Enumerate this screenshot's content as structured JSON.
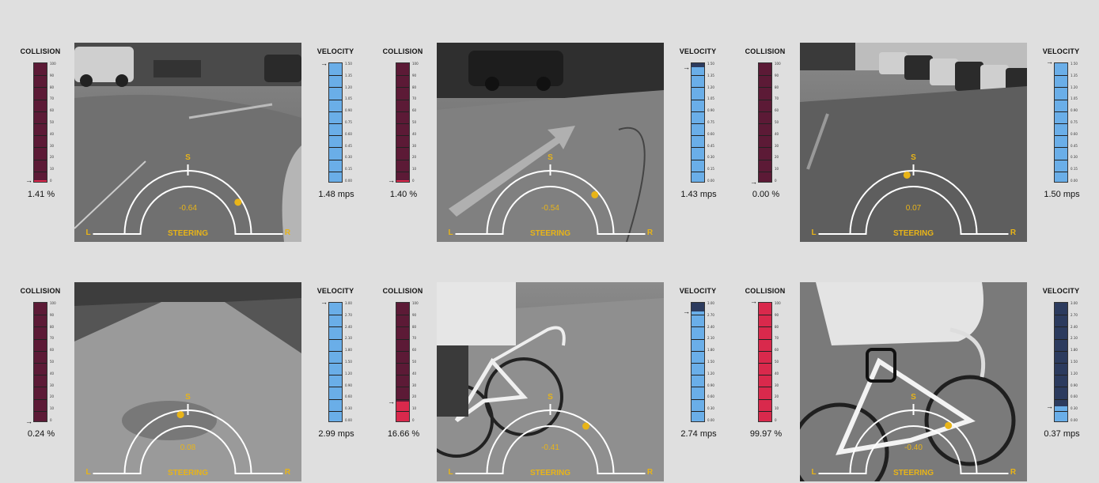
{
  "labels": {
    "collision": "COLLISION",
    "velocity": "VELOCITY",
    "steering": "STEERING",
    "s": "S",
    "l": "L",
    "r": "R"
  },
  "collision_scale": [
    "100",
    "90",
    "80",
    "70",
    "60",
    "50",
    "40",
    "30",
    "20",
    "10",
    "0"
  ],
  "velocity_scale_low": [
    "1.50",
    "1.35",
    "1.20",
    "1.05",
    "0.90",
    "0.75",
    "0.60",
    "0.45",
    "0.30",
    "0.15",
    "0.00"
  ],
  "velocity_scale_high": [
    "3.00",
    "2.70",
    "2.40",
    "2.10",
    "1.80",
    "1.50",
    "1.20",
    "0.90",
    "0.60",
    "0.30",
    "0.00"
  ],
  "colors": {
    "collision_dark": "#5c1a36",
    "collision_alert": "#d9294c",
    "velocity_light": "#6aaee8",
    "velocity_dark": "#2c3b5e",
    "steer": "#e8b418"
  },
  "panels": [
    {
      "collision_text": "1.41 %",
      "collision": 1.41,
      "velocity_text": "1.48 mps",
      "velocity": 1.48,
      "vmax": 1.5,
      "steer_text": "-0.64",
      "steer": -0.64,
      "scene": "parking-road"
    },
    {
      "collision_text": "1.40 %",
      "collision": 1.4,
      "velocity_text": "1.43 mps",
      "velocity": 1.43,
      "vmax": 1.5,
      "steer_text": "-0.54",
      "steer": -0.54,
      "scene": "arrow-road"
    },
    {
      "collision_text": "0.00 %",
      "collision": 0.0,
      "velocity_text": "1.50 mps",
      "velocity": 1.5,
      "vmax": 1.5,
      "steer_text": "0.07",
      "steer": 0.07,
      "scene": "cars-road"
    },
    {
      "collision_text": "0.24 %",
      "collision": 0.24,
      "velocity_text": "2.99 mps",
      "velocity": 2.99,
      "vmax": 3.0,
      "steer_text": "0.08",
      "steer": 0.08,
      "scene": "open-road"
    },
    {
      "collision_text": "16.66 %",
      "collision": 16.66,
      "velocity_text": "2.74 mps",
      "velocity": 2.74,
      "vmax": 3.0,
      "steer_text": "-0.41",
      "steer": -0.41,
      "scene": "cyclist-far"
    },
    {
      "collision_text": "99.97 %",
      "collision": 99.97,
      "velocity_text": "0.37 mps",
      "velocity": 0.37,
      "vmax": 3.0,
      "steer_text": "-0.40",
      "steer": -0.4,
      "scene": "cyclist-near"
    }
  ]
}
